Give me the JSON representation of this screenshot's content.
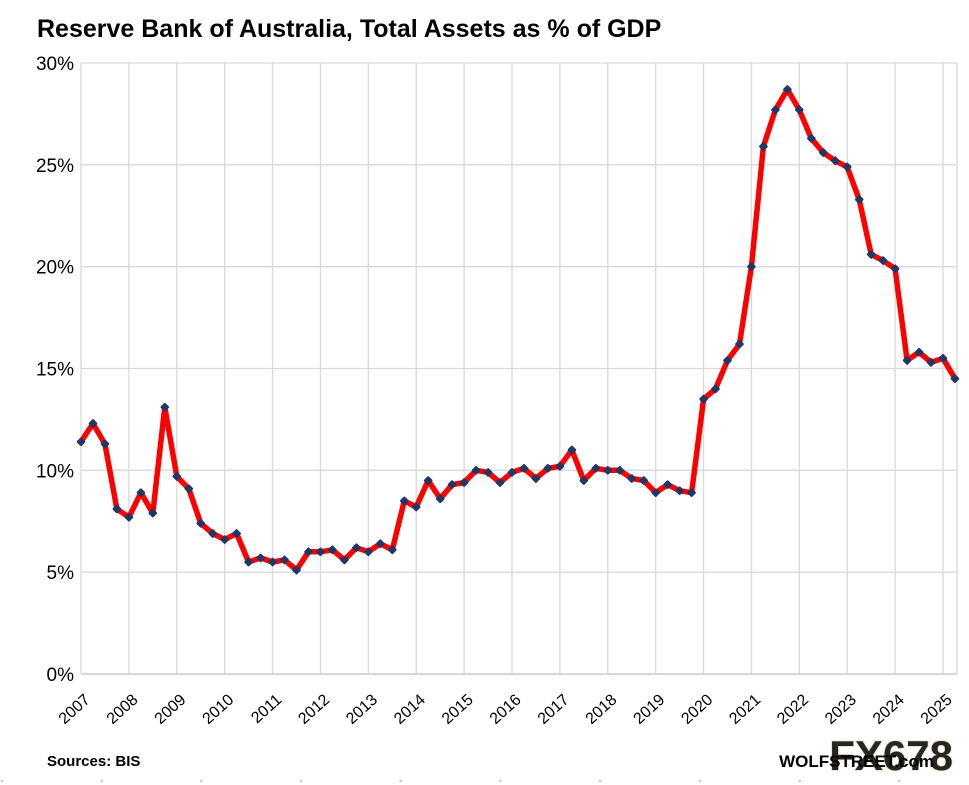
{
  "chart_data": {
    "type": "line",
    "title": "Reserve Bank of Australia, Total Assets as % of GDP",
    "frequency": "quarterly",
    "x_start": "2007-Q1",
    "x_end": "2025-Q2",
    "x_tick_labels": [
      "2007",
      "2008",
      "2009",
      "2010",
      "2011",
      "2012",
      "2013",
      "2014",
      "2015",
      "2016",
      "2017",
      "2018",
      "2019",
      "2020",
      "2021",
      "2022",
      "2023",
      "2024",
      "2025"
    ],
    "y_ticks": [
      0,
      5,
      10,
      15,
      20,
      25,
      30
    ],
    "y_tick_labels": [
      "0%",
      "5%",
      "10%",
      "15%",
      "20%",
      "25%",
      "30%"
    ],
    "ylim": [
      0,
      30
    ],
    "grid": true,
    "legend": false,
    "series": [
      {
        "name": "RBA total assets as % of GDP",
        "values": [
          11.4,
          12.3,
          11.3,
          8.1,
          7.7,
          8.9,
          7.9,
          13.1,
          9.7,
          9.1,
          7.4,
          6.9,
          6.6,
          6.9,
          5.5,
          5.7,
          5.5,
          5.6,
          5.1,
          6.0,
          6.0,
          6.1,
          5.6,
          6.2,
          6.0,
          6.4,
          6.1,
          8.5,
          8.2,
          9.5,
          8.6,
          9.3,
          9.4,
          10.0,
          9.9,
          9.4,
          9.9,
          10.1,
          9.6,
          10.1,
          10.2,
          11.0,
          9.5,
          10.1,
          10.0,
          10.0,
          9.6,
          9.5,
          8.9,
          9.3,
          9.0,
          8.9,
          13.5,
          14.0,
          15.4,
          16.2,
          20.0,
          25.9,
          27.7,
          28.7,
          27.7,
          26.3,
          25.6,
          25.2,
          24.9,
          23.3,
          20.6,
          20.3,
          19.9,
          15.4,
          15.8,
          15.3,
          15.5,
          14.5
        ]
      }
    ],
    "colors": {
      "line": "#fe0000",
      "marker": "#1f3864",
      "grid": "#d9d9d9",
      "axis": "#bfbfbf",
      "text": "#000000",
      "watermark_fill": "#c3d2e9",
      "watermark_outline": "#eccfad"
    }
  },
  "footer": {
    "sources": "Sources: BIS",
    "branding": "WOLFSTREET.com",
    "watermark": "FX678"
  }
}
